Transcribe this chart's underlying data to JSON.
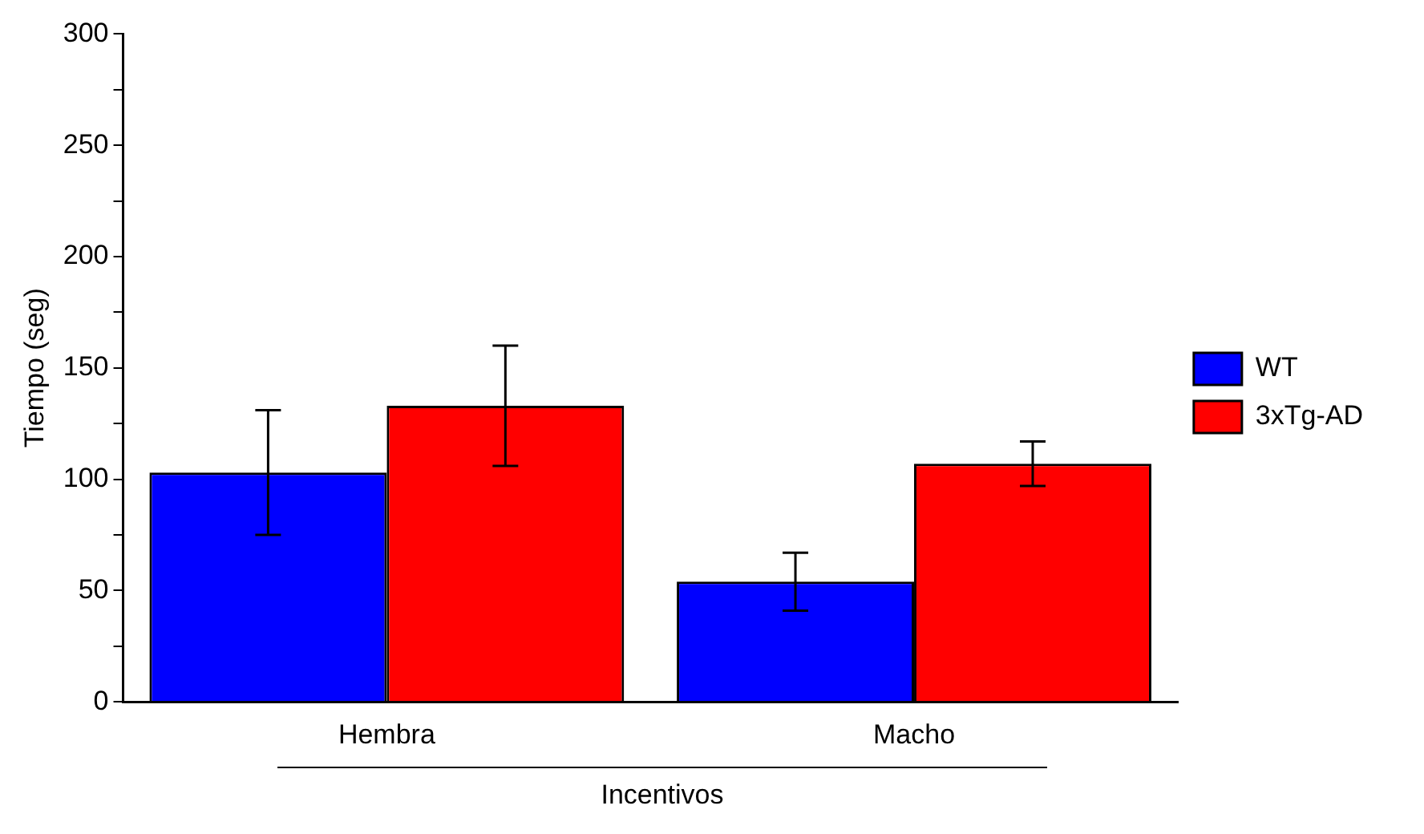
{
  "chart_data": {
    "type": "bar",
    "xlabel": "Incentivos",
    "ylabel": "Tiempo (seg)",
    "categories": [
      "Hembra",
      "Macho"
    ],
    "series": [
      {
        "name": "WT",
        "color": "#0000ff",
        "values": [
          103,
          54
        ],
        "errors": [
          28,
          13
        ]
      },
      {
        "name": "3xTg-AD",
        "color": "#ff0000",
        "values": [
          133,
          107
        ],
        "errors": [
          27,
          10
        ]
      }
    ],
    "ylim": [
      0,
      300
    ],
    "yticks": [
      0,
      {
        "value": 25,
        "label": null
      },
      50,
      {
        "value": 75,
        "label": null
      },
      100,
      {
        "value": 125,
        "label": null
      },
      150,
      {
        "value": 175,
        "label": null
      },
      200,
      {
        "value": 225,
        "label": null
      },
      250,
      {
        "value": 275,
        "label": null
      },
      300
    ],
    "grid": false,
    "legend": "right"
  }
}
